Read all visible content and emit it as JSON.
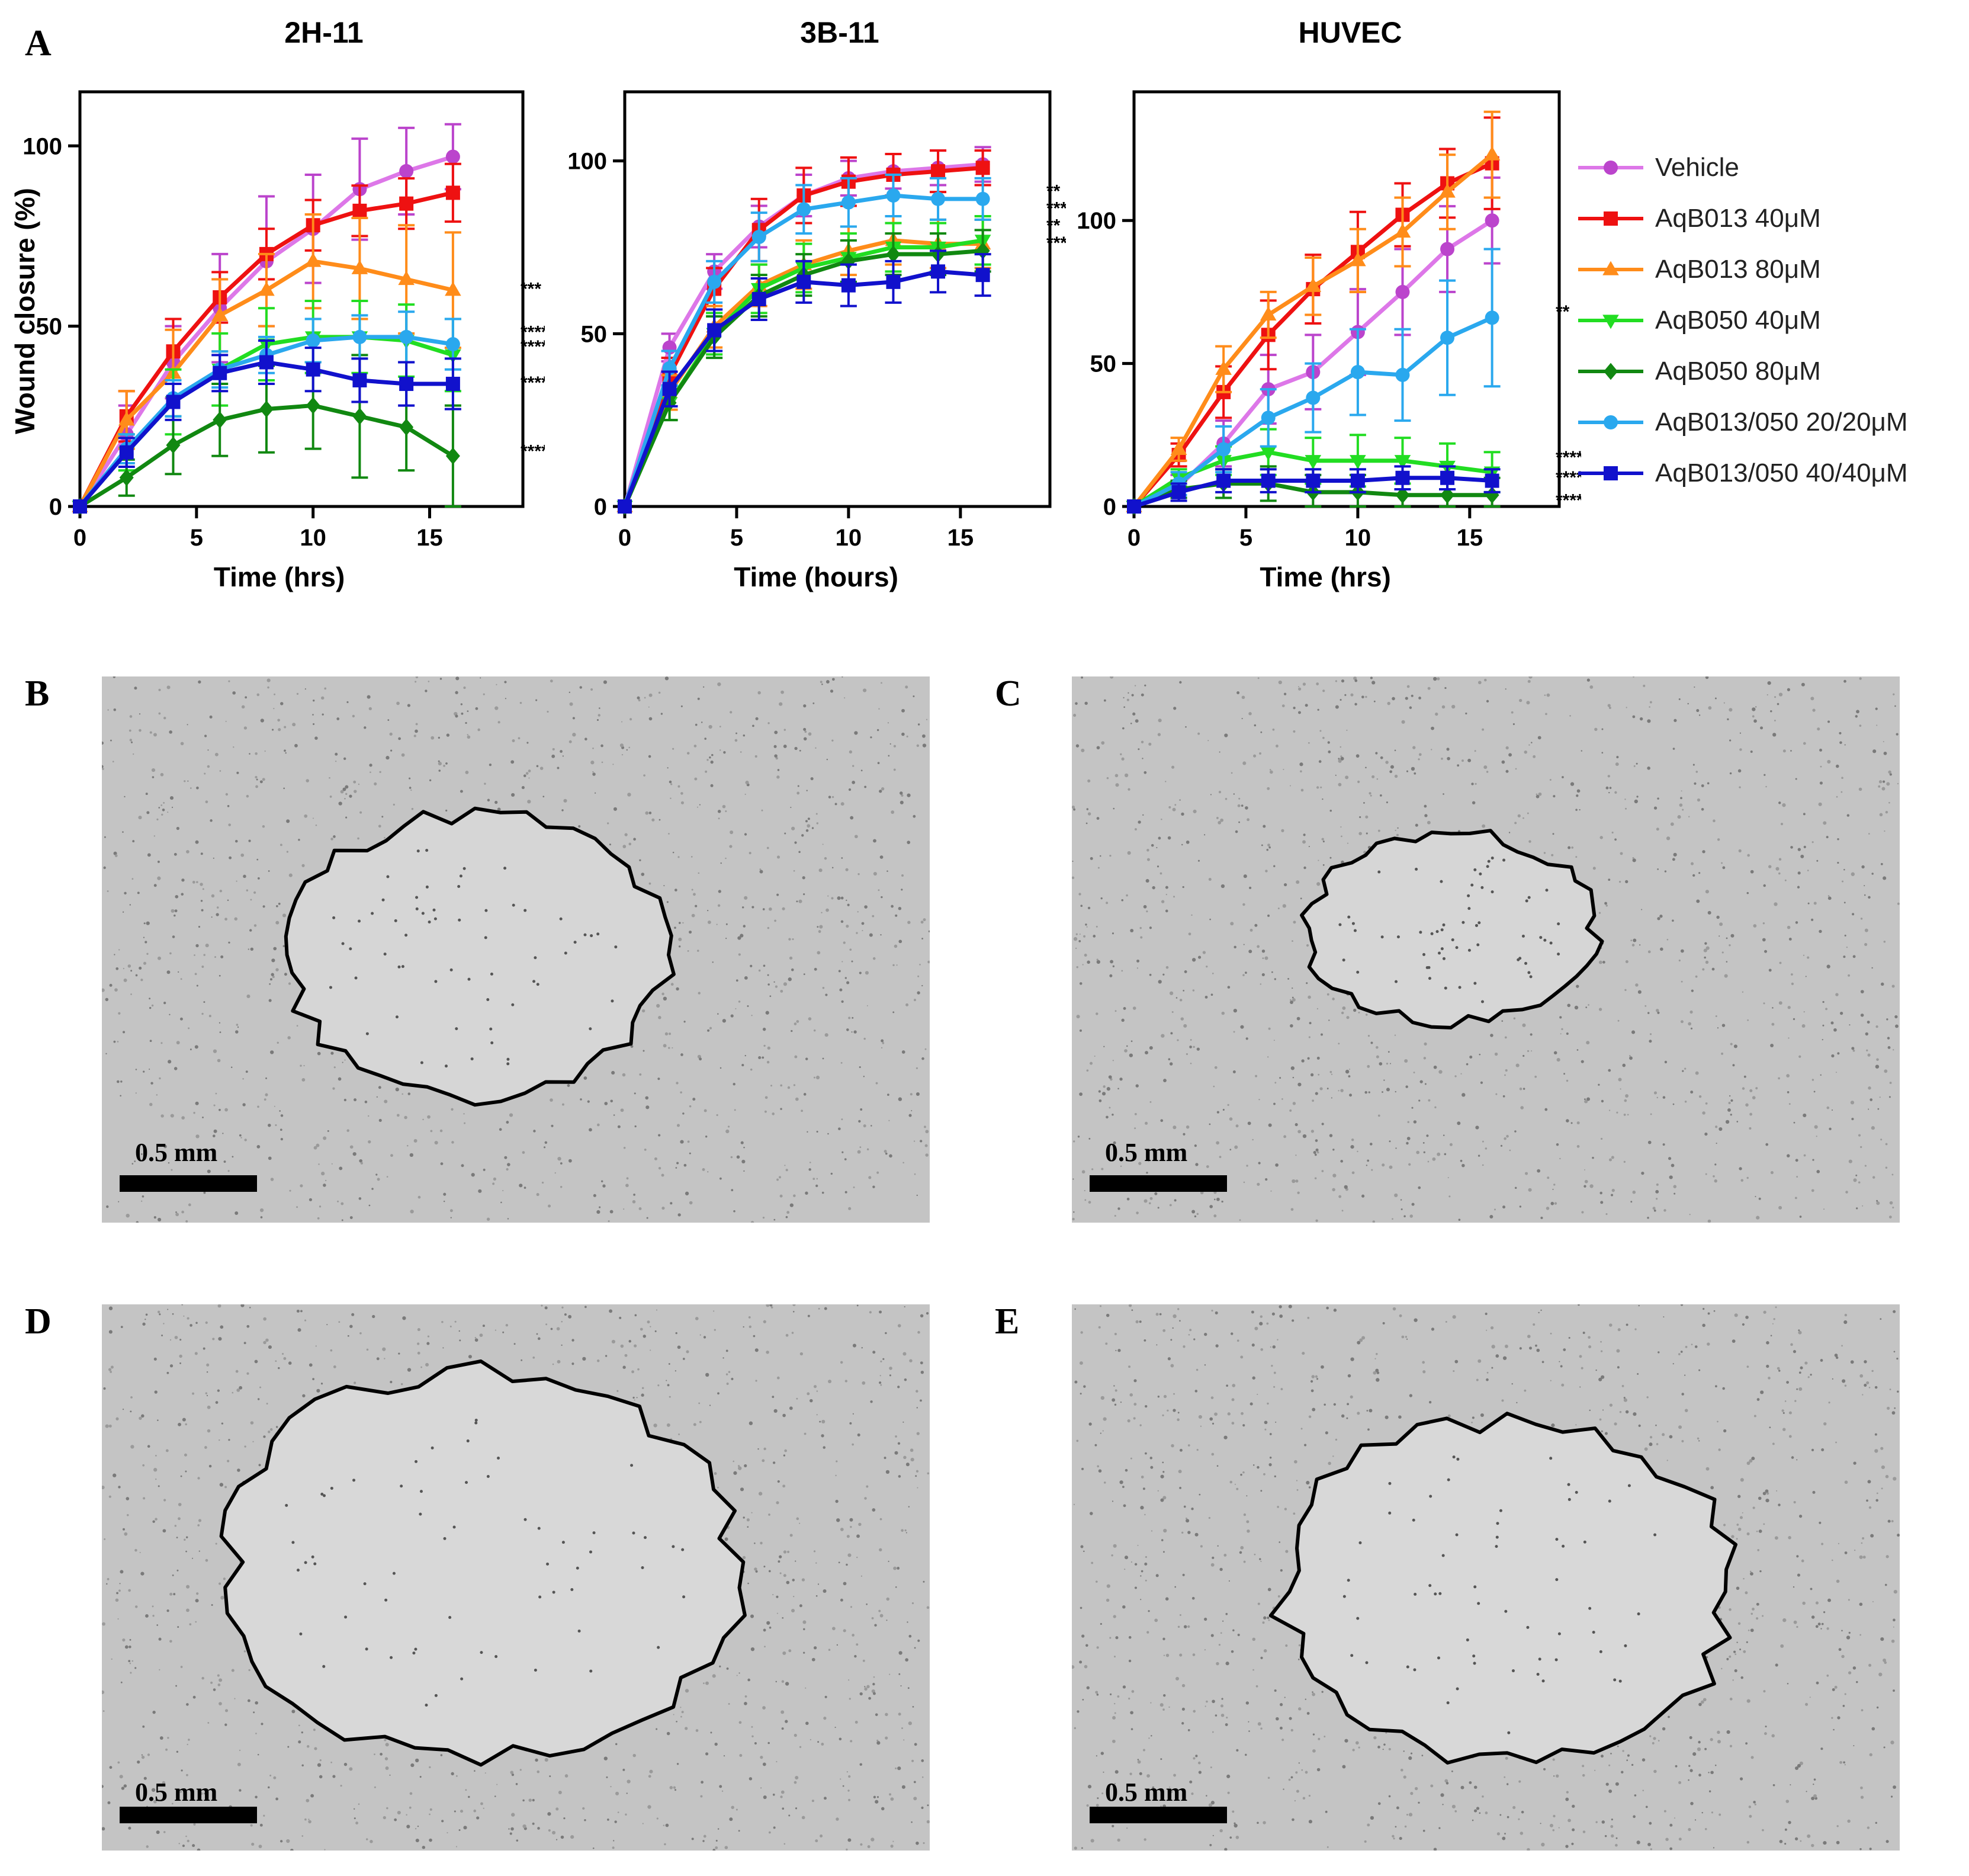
{
  "panels": {
    "A": "A",
    "B": "B",
    "C": "C",
    "D": "D",
    "E": "E"
  },
  "scale_bar_label": "0.5 mm",
  "series_styles": [
    {
      "name": "Vehicle",
      "color": "#bb44cc",
      "line": "#dd77e8",
      "marker": "circle"
    },
    {
      "name": "AqB013 40μM",
      "color": "#ee1111",
      "line": "#ee1111",
      "marker": "square"
    },
    {
      "name": "AqB013 80μM",
      "color": "#ff8c1a",
      "line": "#ff8c1a",
      "marker": "triangle-up"
    },
    {
      "name": "AqB050 40μM",
      "color": "#22dd22",
      "line": "#22dd22",
      "marker": "triangle-down"
    },
    {
      "name": "AqB050 80μM",
      "color": "#118811",
      "line": "#118811",
      "marker": "diamond"
    },
    {
      "name": "AqB013/050 20/20μM",
      "color": "#2aa8ee",
      "line": "#2aa8ee",
      "marker": "circle"
    },
    {
      "name": "AqB013/050 40/40μM",
      "color": "#1111cc",
      "line": "#1111cc",
      "marker": "square"
    }
  ],
  "chart_data": [
    {
      "type": "line",
      "title": "2H-11",
      "xlabel": "Time (hrs)",
      "ylabel": "Wound closure (%)",
      "xlim": [
        0,
        19
      ],
      "ylim": [
        0,
        115
      ],
      "xticks": [
        0,
        5,
        10,
        15
      ],
      "yticks": [
        0,
        50,
        100
      ],
      "x": [
        0,
        2,
        4,
        6,
        8,
        10,
        12,
        14,
        16
      ],
      "series": [
        {
          "name": "Vehicle",
          "values": [
            0,
            20,
            40,
            55,
            68,
            77,
            88,
            93,
            97
          ],
          "err": [
            0,
            8,
            10,
            15,
            18,
            15,
            14,
            12,
            9
          ]
        },
        {
          "name": "AqB013 40μM",
          "values": [
            0,
            25,
            43,
            58,
            70,
            78,
            82,
            84,
            87
          ],
          "err": [
            0,
            7,
            9,
            7,
            7,
            7,
            7,
            7,
            8
          ]
        },
        {
          "name": "AqB013 80μM",
          "values": [
            0,
            24,
            37,
            53,
            60,
            68,
            66,
            63,
            60
          ],
          "err": [
            0,
            8,
            12,
            10,
            10,
            13,
            14,
            15,
            16
          ]
        },
        {
          "name": "AqB050 40μM",
          "values": [
            0,
            15,
            29,
            38,
            45,
            47,
            47,
            46,
            42
          ],
          "err": [
            0,
            5,
            9,
            10,
            10,
            10,
            10,
            10,
            10
          ]
        },
        {
          "name": "AqB050 80μM",
          "values": [
            0,
            8,
            17,
            24,
            27,
            28,
            25,
            22,
            14
          ],
          "err": [
            0,
            5,
            8,
            10,
            12,
            12,
            17,
            12,
            14
          ]
        },
        {
          "name": "AqB013/050 20/20μM",
          "values": [
            0,
            16,
            30,
            38,
            42,
            46,
            47,
            47,
            45
          ],
          "err": [
            0,
            4,
            5,
            5,
            5,
            6,
            6,
            7,
            7
          ]
        },
        {
          "name": "AqB013/050 40/40μM",
          "values": [
            0,
            15,
            29,
            37,
            40,
            38,
            35,
            34,
            34
          ],
          "err": [
            0,
            4,
            5,
            5,
            6,
            6,
            6,
            6,
            7
          ]
        }
      ],
      "annotations": [
        {
          "text": "***",
          "y": 61
        },
        {
          "text": "****",
          "y": 49
        },
        {
          "text": "****",
          "y": 45
        },
        {
          "text": "****",
          "y": 35
        },
        {
          "text": "****",
          "y": 16
        }
      ]
    },
    {
      "type": "line",
      "title": "3B-11",
      "xlabel": "Time (hours)",
      "ylabel": "",
      "xlim": [
        0,
        19
      ],
      "ylim": [
        0,
        120
      ],
      "xticks": [
        0,
        5,
        10,
        15
      ],
      "yticks": [
        0,
        50,
        100
      ],
      "x": [
        0,
        2,
        4,
        6,
        8,
        10,
        12,
        14,
        16
      ],
      "series": [
        {
          "name": "Vehicle",
          "values": [
            0,
            46,
            68,
            81,
            90,
            95,
            97,
            98,
            99
          ],
          "err": [
            0,
            4,
            5,
            6,
            6,
            5,
            5,
            5,
            5
          ]
        },
        {
          "name": "AqB013 40μM",
          "values": [
            0,
            38,
            63,
            80,
            90,
            94,
            96,
            97,
            98
          ],
          "err": [
            0,
            5,
            6,
            9,
            8,
            7,
            6,
            6,
            5
          ]
        },
        {
          "name": "AqB013 80μM",
          "values": [
            0,
            33,
            52,
            64,
            70,
            74,
            77,
            76,
            76
          ],
          "err": [
            0,
            5,
            6,
            6,
            7,
            7,
            7,
            7,
            7
          ]
        },
        {
          "name": "AqB050 40μM",
          "values": [
            0,
            30,
            50,
            63,
            69,
            72,
            75,
            75,
            77
          ],
          "err": [
            0,
            5,
            6,
            7,
            7,
            7,
            7,
            7,
            7
          ]
        },
        {
          "name": "AqB050 80μM",
          "values": [
            0,
            30,
            49,
            61,
            67,
            71,
            73,
            73,
            74
          ],
          "err": [
            0,
            5,
            6,
            6,
            6,
            6,
            6,
            6,
            6
          ]
        },
        {
          "name": "AqB013/050 20/20μM",
          "values": [
            0,
            40,
            65,
            78,
            86,
            88,
            90,
            89,
            89
          ],
          "err": [
            0,
            5,
            6,
            7,
            7,
            7,
            6,
            6,
            6
          ]
        },
        {
          "name": "AqB013/050 40/40μM",
          "values": [
            0,
            34,
            51,
            60,
            65,
            64,
            65,
            68,
            67
          ],
          "err": [
            0,
            5,
            6,
            6,
            6,
            6,
            6,
            6,
            6
          ]
        }
      ],
      "annotations": [
        {
          "text": "**",
          "y": 92
        },
        {
          "text": "***",
          "y": 87
        },
        {
          "text": "**",
          "y": 82
        },
        {
          "text": "****",
          "y": 77
        }
      ]
    },
    {
      "type": "line",
      "title": "HUVEC",
      "xlabel": "Time (hrs)",
      "ylabel": "",
      "xlim": [
        0,
        19
      ],
      "ylim": [
        0,
        145
      ],
      "xticks": [
        0,
        5,
        10,
        15
      ],
      "yticks": [
        0,
        50,
        100
      ],
      "x": [
        0,
        2,
        4,
        6,
        8,
        10,
        12,
        14,
        16
      ],
      "series": [
        {
          "name": "Vehicle",
          "values": [
            0,
            7,
            22,
            41,
            47,
            61,
            75,
            90,
            100
          ],
          "err": [
            0,
            4,
            8,
            12,
            13,
            15,
            15,
            15,
            15
          ]
        },
        {
          "name": "AqB013 40μM",
          "values": [
            0,
            18,
            40,
            60,
            76,
            89,
            102,
            113,
            120
          ],
          "err": [
            0,
            4,
            9,
            12,
            12,
            14,
            11,
            12,
            16
          ]
        },
        {
          "name": "AqB013 80μM",
          "values": [
            0,
            20,
            48,
            67,
            77,
            86,
            96,
            110,
            123
          ],
          "err": [
            0,
            4,
            8,
            8,
            10,
            11,
            12,
            13,
            15
          ]
        },
        {
          "name": "AqB050 40μM",
          "values": [
            0,
            10,
            16,
            19,
            16,
            16,
            16,
            14,
            12
          ],
          "err": [
            0,
            3,
            5,
            8,
            8,
            9,
            8,
            8,
            7
          ]
        },
        {
          "name": "AqB050 80μM",
          "values": [
            0,
            6,
            8,
            8,
            5,
            5,
            4,
            4,
            4
          ],
          "err": [
            0,
            3,
            5,
            6,
            6,
            6,
            6,
            6,
            6
          ]
        },
        {
          "name": "AqB013/050 20/20μM",
          "values": [
            0,
            8,
            20,
            31,
            38,
            47,
            46,
            59,
            66
          ],
          "err": [
            0,
            4,
            8,
            10,
            12,
            15,
            16,
            20,
            24
          ]
        },
        {
          "name": "AqB013/050 40/40μM",
          "values": [
            0,
            5,
            9,
            9,
            9,
            9,
            10,
            10,
            9
          ],
          "err": [
            0,
            3,
            4,
            4,
            4,
            4,
            4,
            4,
            4
          ]
        }
      ],
      "annotations": [
        {
          "text": "**",
          "y": 69
        },
        {
          "text": "****",
          "y": 18
        },
        {
          "text": "****",
          "y": 11
        },
        {
          "text": "****",
          "y": 3
        }
      ]
    }
  ]
}
